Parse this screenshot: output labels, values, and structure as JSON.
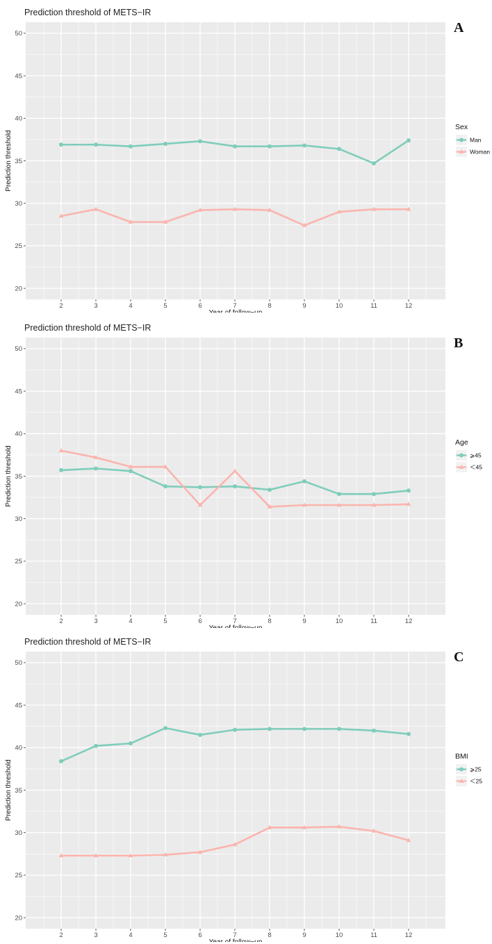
{
  "colors": {
    "green": "#7fcdbb",
    "pink": "#fbb4ae",
    "panel_bg": "#ebebeb",
    "grid": "#ffffff"
  },
  "chart_data": [
    {
      "type": "line",
      "panel_label": "A",
      "title": "Prediction threshold of METS−IR",
      "xlabel": "Year of follow−up",
      "ylabel": "Prediction threshold",
      "categories": [
        "2",
        "3",
        "4",
        "5",
        "6",
        "7",
        "8",
        "9",
        "10",
        "11",
        "12"
      ],
      "yticks": [
        "20",
        "25",
        "30",
        "35",
        "40",
        "45",
        "50"
      ],
      "ylim": [
        18.7,
        51.3
      ],
      "legend_title": "Sex",
      "series": [
        {
          "name": "Man",
          "color": "#7fcdbb",
          "marker": "circle",
          "values": [
            36.9,
            36.9,
            36.7,
            37.0,
            37.3,
            36.7,
            36.7,
            36.8,
            36.4,
            34.7,
            37.4
          ]
        },
        {
          "name": "Woman",
          "color": "#fbb4ae",
          "marker": "triangle",
          "values": [
            28.5,
            29.3,
            27.8,
            27.8,
            29.2,
            29.3,
            29.2,
            27.4,
            29.0,
            29.3,
            29.3
          ]
        }
      ]
    },
    {
      "type": "line",
      "panel_label": "B",
      "title": "Prediction threshold of METS−IR",
      "xlabel": "Year of follow−up",
      "ylabel": "Prediction threshold",
      "categories": [
        "2",
        "3",
        "4",
        "5",
        "6",
        "7",
        "8",
        "9",
        "10",
        "11",
        "12"
      ],
      "yticks": [
        "20",
        "25",
        "30",
        "35",
        "40",
        "45",
        "50"
      ],
      "ylim": [
        18.7,
        51.3
      ],
      "legend_title": "Age",
      "series": [
        {
          "name": "⩾45",
          "color": "#7fcdbb",
          "marker": "circle",
          "values": [
            35.7,
            35.9,
            35.6,
            33.8,
            33.7,
            33.8,
            33.4,
            34.4,
            32.9,
            32.9,
            33.3
          ]
        },
        {
          "name": "＜45",
          "color": "#fbb4ae",
          "marker": "triangle",
          "values": [
            38.0,
            37.2,
            36.1,
            36.1,
            31.6,
            35.6,
            31.4,
            31.6,
            31.6,
            31.6,
            31.7
          ]
        }
      ]
    },
    {
      "type": "line",
      "panel_label": "C",
      "title": "Prediction threshold of METS−IR",
      "xlabel": "Year of follow−up",
      "ylabel": "Prediction threshold",
      "categories": [
        "2",
        "3",
        "4",
        "5",
        "6",
        "7",
        "8",
        "9",
        "10",
        "11",
        "12"
      ],
      "yticks": [
        "20",
        "25",
        "30",
        "35",
        "40",
        "45",
        "50"
      ],
      "ylim": [
        18.7,
        51.3
      ],
      "legend_title": "BMI",
      "series": [
        {
          "name": "⩾25",
          "color": "#7fcdbb",
          "marker": "circle",
          "values": [
            38.4,
            40.2,
            40.5,
            42.3,
            41.5,
            42.1,
            42.2,
            42.2,
            42.2,
            42.0,
            41.6
          ]
        },
        {
          "name": "＜25",
          "color": "#fbb4ae",
          "marker": "triangle",
          "values": [
            27.3,
            27.3,
            27.3,
            27.4,
            27.7,
            28.6,
            30.6,
            30.6,
            30.7,
            30.2,
            29.1
          ]
        }
      ]
    }
  ]
}
